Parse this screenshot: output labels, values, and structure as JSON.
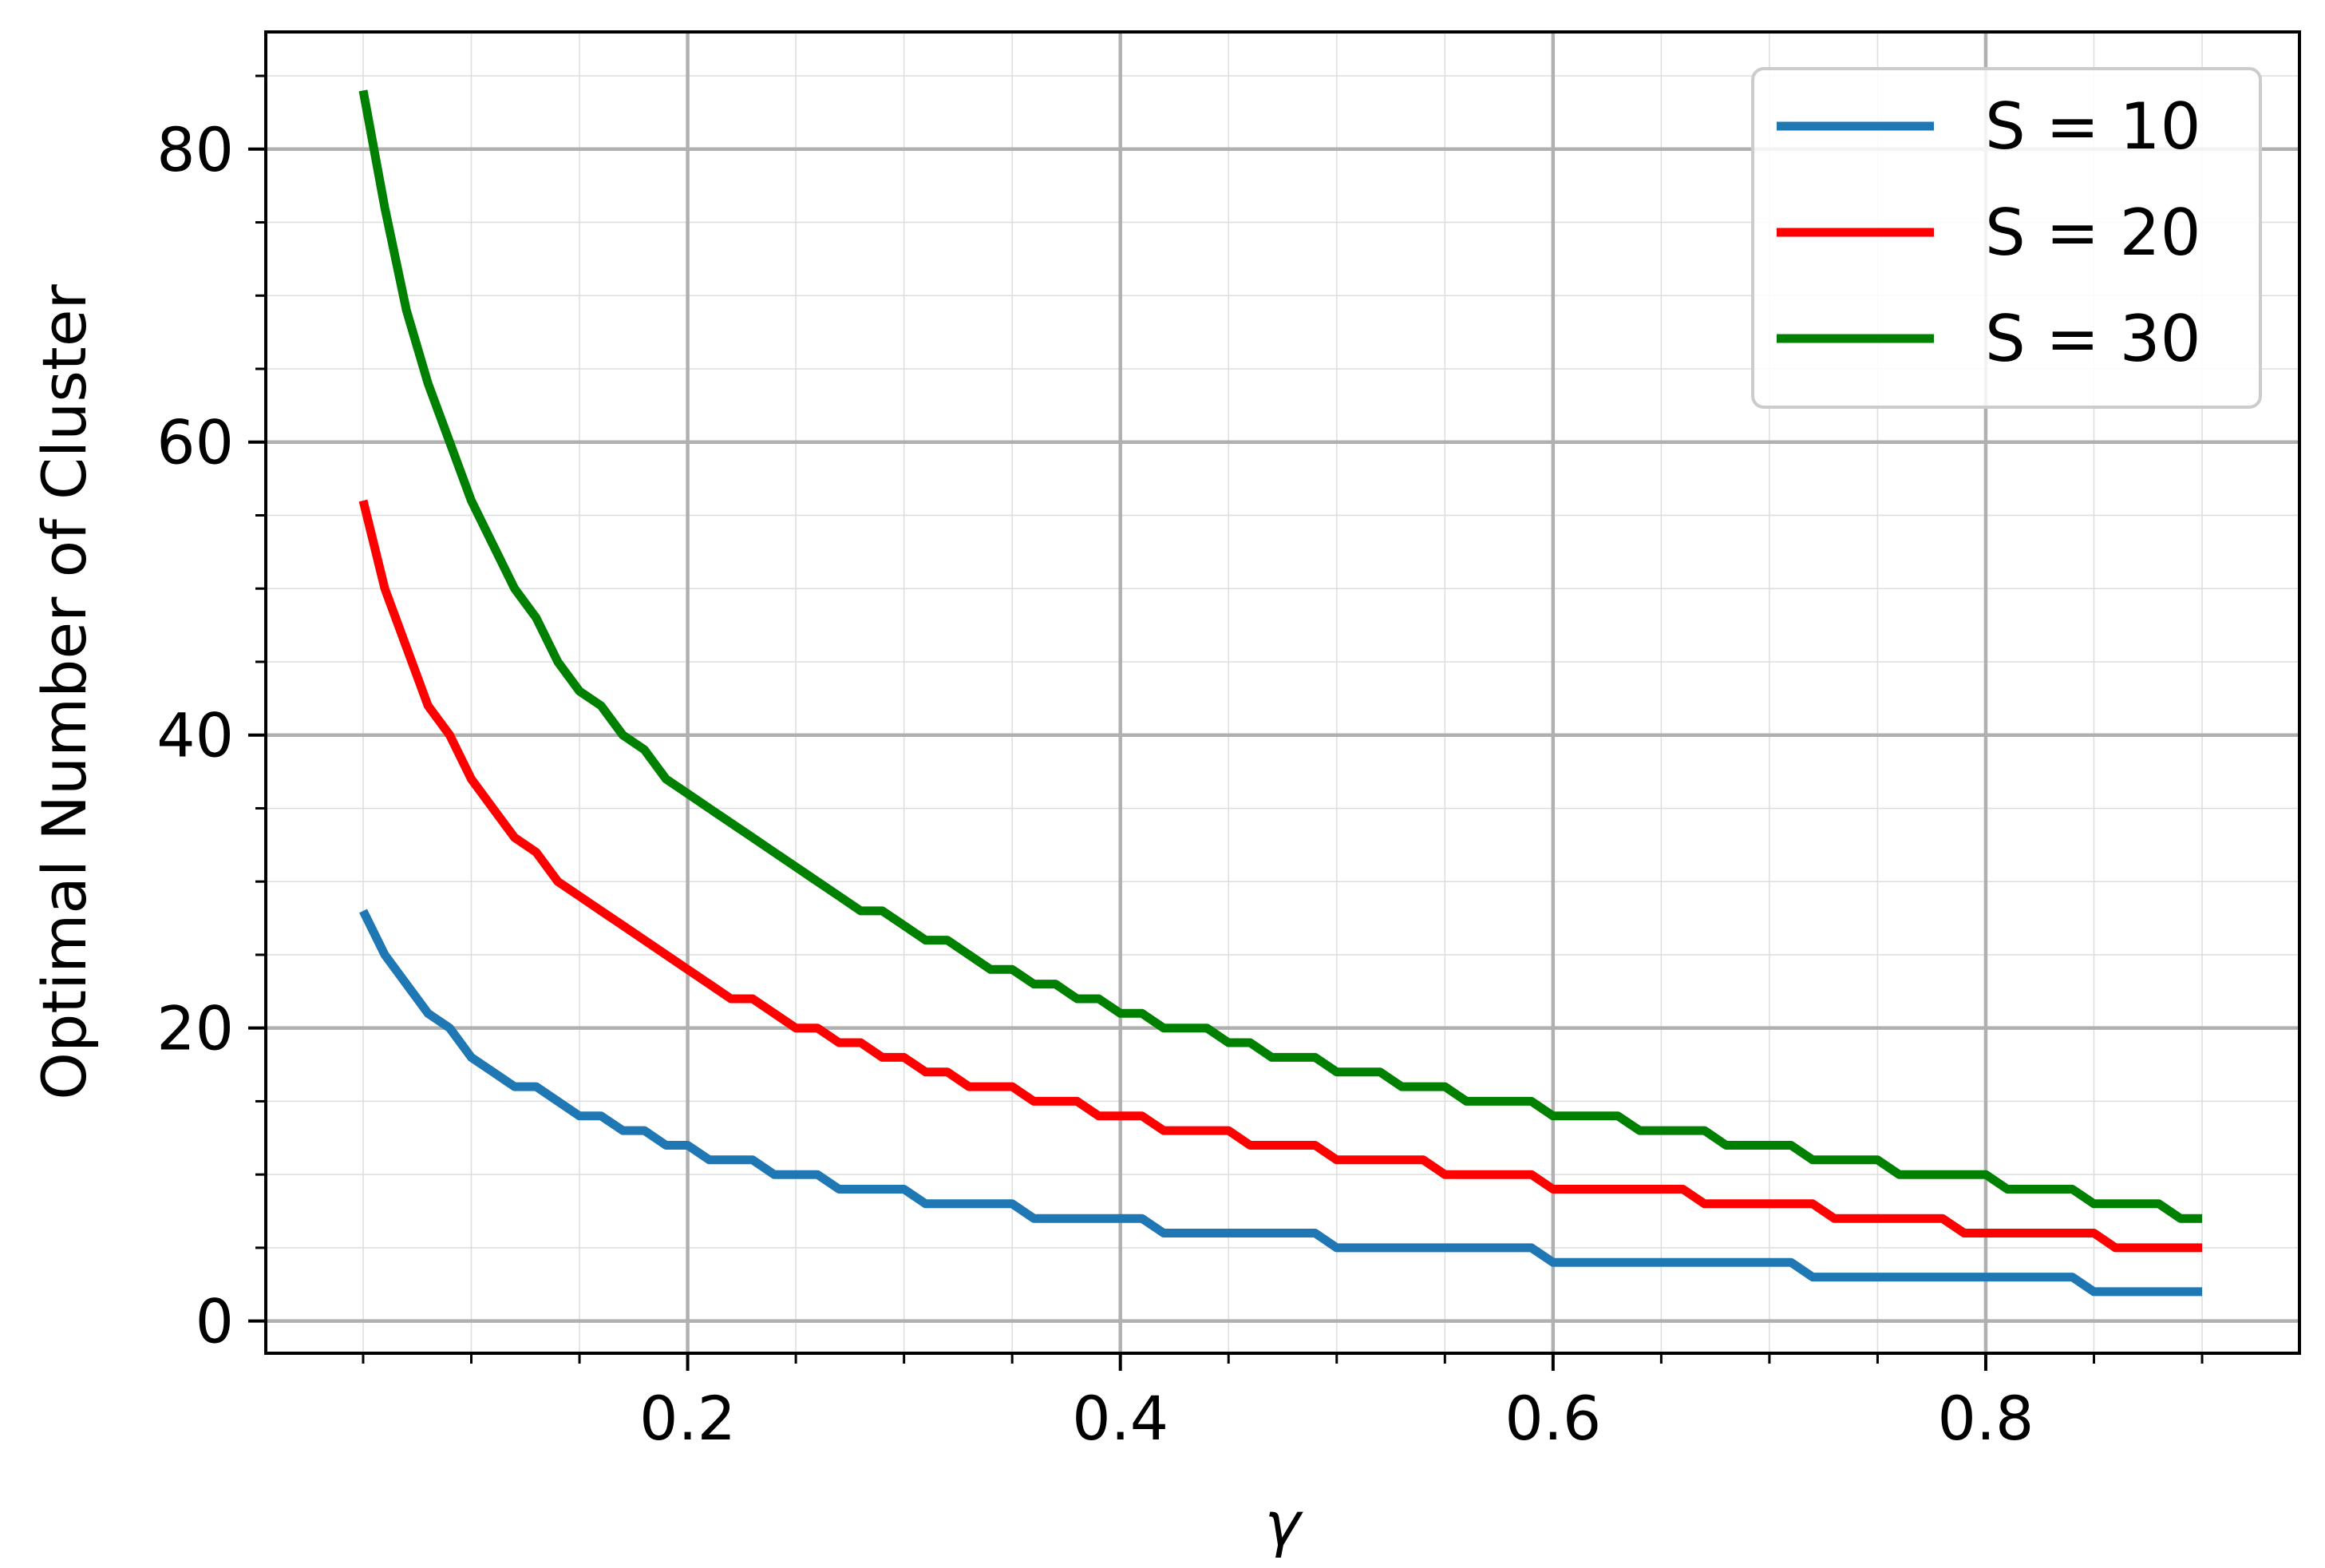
{
  "chart_data": {
    "type": "line",
    "xlabel": "γ",
    "ylabel": "Optimal Number of Cluster",
    "xlim": [
      0.005,
      0.945
    ],
    "ylim": [
      -2.2,
      88
    ],
    "xticks": [
      0.2,
      0.4,
      0.6,
      0.8
    ],
    "xtick_labels": [
      "0.2",
      "0.4",
      "0.6",
      "0.8"
    ],
    "xminor": [
      0.05,
      0.1,
      0.15,
      0.25,
      0.3,
      0.35,
      0.45,
      0.5,
      0.55,
      0.65,
      0.7,
      0.75,
      0.85,
      0.9
    ],
    "yticks": [
      0,
      20,
      40,
      60,
      80
    ],
    "ytick_labels": [
      "0",
      "20",
      "40",
      "60",
      "80"
    ],
    "yminor": [
      5,
      10,
      15,
      25,
      30,
      35,
      45,
      50,
      55,
      65,
      70,
      75,
      85
    ],
    "grid": true,
    "legend_position": "top-right",
    "x": [
      0.05,
      0.06,
      0.07,
      0.08,
      0.09,
      0.1,
      0.11,
      0.12,
      0.13,
      0.14,
      0.15,
      0.16,
      0.17,
      0.18,
      0.19,
      0.2,
      0.21,
      0.22,
      0.23,
      0.24,
      0.25,
      0.26,
      0.27,
      0.28,
      0.29,
      0.3,
      0.31,
      0.32,
      0.33,
      0.34,
      0.35,
      0.36,
      0.37,
      0.38,
      0.39,
      0.4,
      0.41,
      0.42,
      0.43,
      0.44,
      0.45,
      0.46,
      0.47,
      0.48,
      0.49,
      0.5,
      0.51,
      0.52,
      0.53,
      0.54,
      0.55,
      0.56,
      0.57,
      0.58,
      0.59,
      0.6,
      0.61,
      0.62,
      0.63,
      0.64,
      0.65,
      0.66,
      0.67,
      0.68,
      0.69,
      0.7,
      0.71,
      0.72,
      0.73,
      0.74,
      0.75,
      0.76,
      0.77,
      0.78,
      0.79,
      0.8,
      0.81,
      0.82,
      0.83,
      0.84,
      0.85,
      0.86,
      0.87,
      0.88,
      0.89,
      0.9
    ],
    "series": [
      {
        "name": "S = 10",
        "color": "#1f77b4",
        "values": [
          28,
          25,
          23,
          21,
          20,
          18,
          17,
          16,
          16,
          15,
          14,
          14,
          13,
          13,
          12,
          12,
          11,
          11,
          11,
          10,
          10,
          10,
          9,
          9,
          9,
          9,
          8,
          8,
          8,
          8,
          8,
          7,
          7,
          7,
          7,
          7,
          7,
          6,
          6,
          6,
          6,
          6,
          6,
          6,
          6,
          5,
          5,
          5,
          5,
          5,
          5,
          5,
          5,
          5,
          5,
          4,
          4,
          4,
          4,
          4,
          4,
          4,
          4,
          4,
          4,
          4,
          4,
          3,
          3,
          3,
          3,
          3,
          3,
          3,
          3,
          3,
          3,
          3,
          3,
          3,
          2,
          2,
          2,
          2,
          2,
          2
        ]
      },
      {
        "name": "S = 20",
        "color": "#ff0000",
        "values": [
          56,
          50,
          46,
          42,
          40,
          37,
          35,
          33,
          32,
          30,
          29,
          28,
          27,
          26,
          25,
          24,
          23,
          22,
          22,
          21,
          20,
          20,
          19,
          19,
          18,
          18,
          17,
          17,
          16,
          16,
          16,
          15,
          15,
          15,
          14,
          14,
          14,
          13,
          13,
          13,
          13,
          12,
          12,
          12,
          12,
          11,
          11,
          11,
          11,
          11,
          10,
          10,
          10,
          10,
          10,
          9,
          9,
          9,
          9,
          9,
          9,
          9,
          8,
          8,
          8,
          8,
          8,
          8,
          7,
          7,
          7,
          7,
          7,
          7,
          6,
          6,
          6,
          6,
          6,
          6,
          6,
          5,
          5,
          5,
          5,
          5
        ]
      },
      {
        "name": "S = 30",
        "color": "#008000",
        "values": [
          84,
          76,
          69,
          64,
          60,
          56,
          53,
          50,
          48,
          45,
          43,
          42,
          40,
          39,
          37,
          36,
          35,
          34,
          33,
          32,
          31,
          30,
          29,
          28,
          28,
          27,
          26,
          26,
          25,
          24,
          24,
          23,
          23,
          22,
          22,
          21,
          21,
          20,
          20,
          20,
          19,
          19,
          18,
          18,
          18,
          17,
          17,
          17,
          16,
          16,
          16,
          15,
          15,
          15,
          15,
          14,
          14,
          14,
          14,
          13,
          13,
          13,
          13,
          12,
          12,
          12,
          12,
          11,
          11,
          11,
          11,
          10,
          10,
          10,
          10,
          10,
          9,
          9,
          9,
          9,
          8,
          8,
          8,
          8,
          7,
          7
        ]
      }
    ]
  }
}
